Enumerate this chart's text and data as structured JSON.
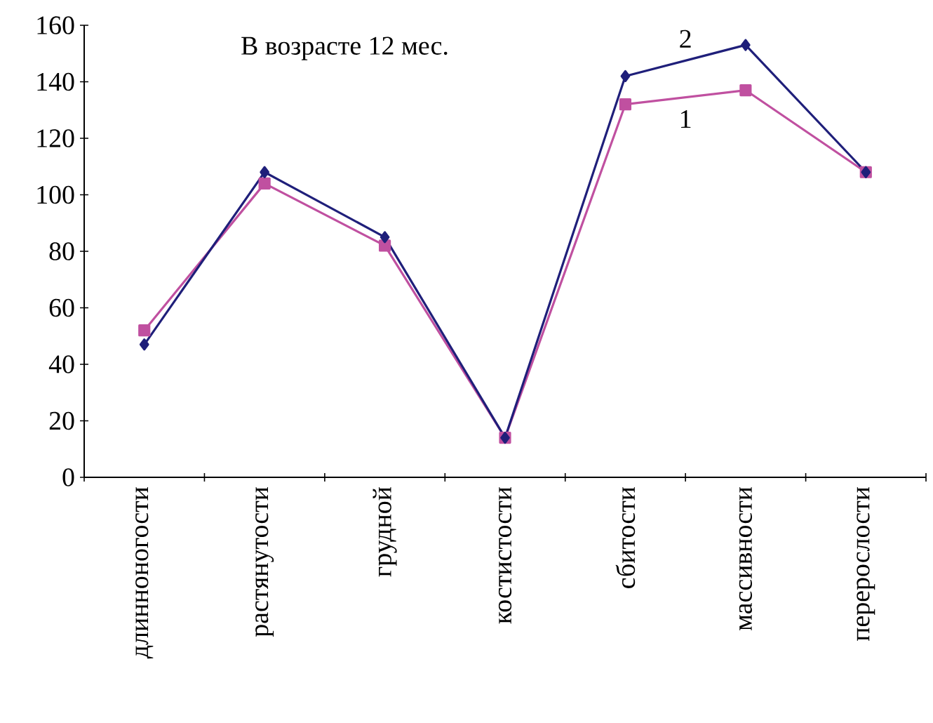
{
  "chart_data": {
    "type": "line",
    "title": "В возрасте 12 мес.",
    "categories": [
      "длинноногости",
      "растянутости",
      "грудной",
      "костистости",
      "сбитости",
      "массивности",
      "перерослости"
    ],
    "series": [
      {
        "name": "1",
        "color": "#c050a0",
        "marker": "square",
        "values": [
          52,
          104,
          82,
          14,
          132,
          137,
          108
        ]
      },
      {
        "name": "2",
        "color": "#1f1f7a",
        "marker": "diamond",
        "values": [
          47,
          108,
          85,
          14,
          142,
          153,
          108
        ]
      }
    ],
    "ylim": [
      0,
      160
    ],
    "yticks": [
      0,
      20,
      40,
      60,
      80,
      100,
      120,
      140,
      160
    ],
    "grid": false,
    "legend": false
  }
}
